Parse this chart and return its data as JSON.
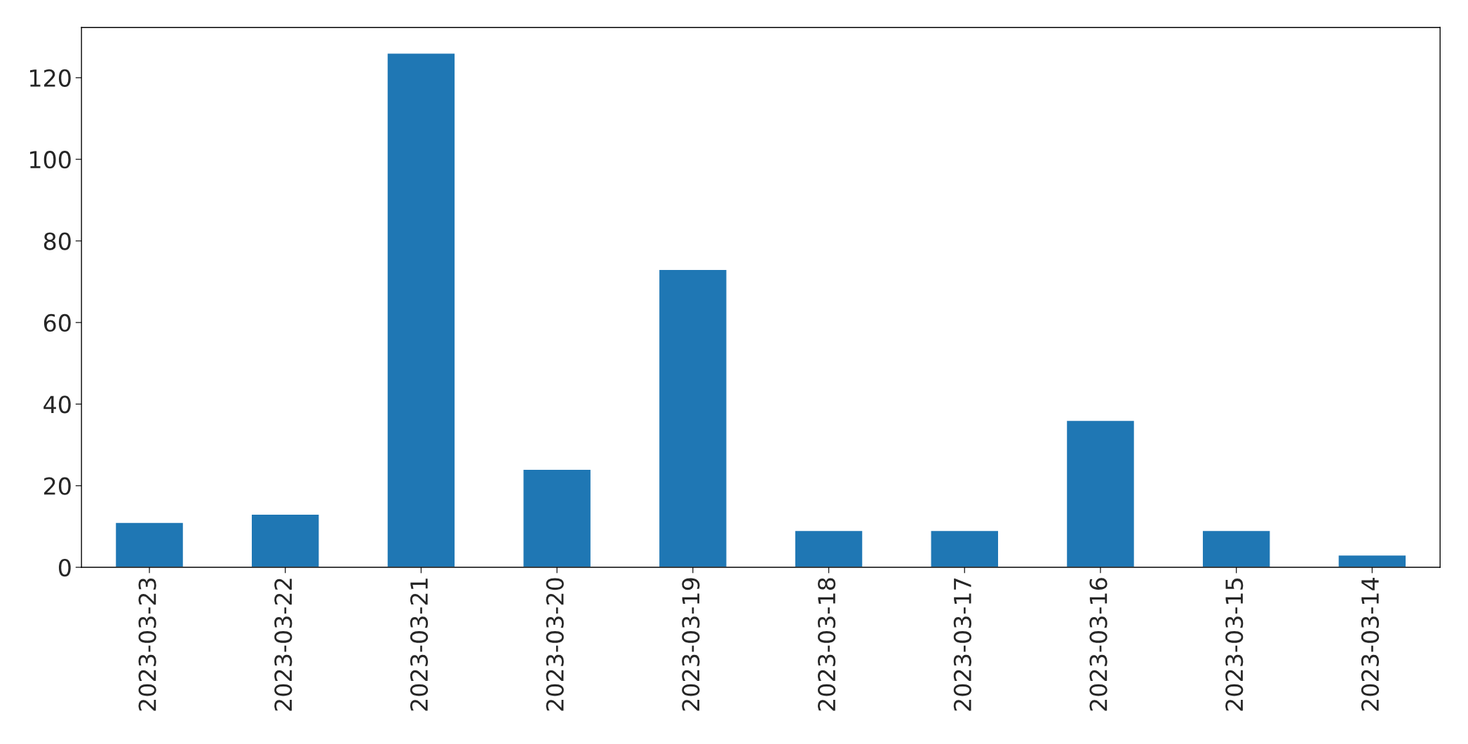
{
  "chart_data": {
    "type": "bar",
    "categories": [
      "2023-03-23",
      "2023-03-22",
      "2023-03-21",
      "2023-03-20",
      "2023-03-19",
      "2023-03-18",
      "2023-03-17",
      "2023-03-16",
      "2023-03-15",
      "2023-03-14"
    ],
    "values": [
      11,
      13,
      126,
      24,
      73,
      9,
      9,
      36,
      9,
      3
    ],
    "color": "#1f77b4",
    "ylim": [
      0,
      132.3
    ],
    "yticks": [
      0,
      20,
      40,
      60,
      80,
      100,
      120
    ],
    "grid": false
  }
}
